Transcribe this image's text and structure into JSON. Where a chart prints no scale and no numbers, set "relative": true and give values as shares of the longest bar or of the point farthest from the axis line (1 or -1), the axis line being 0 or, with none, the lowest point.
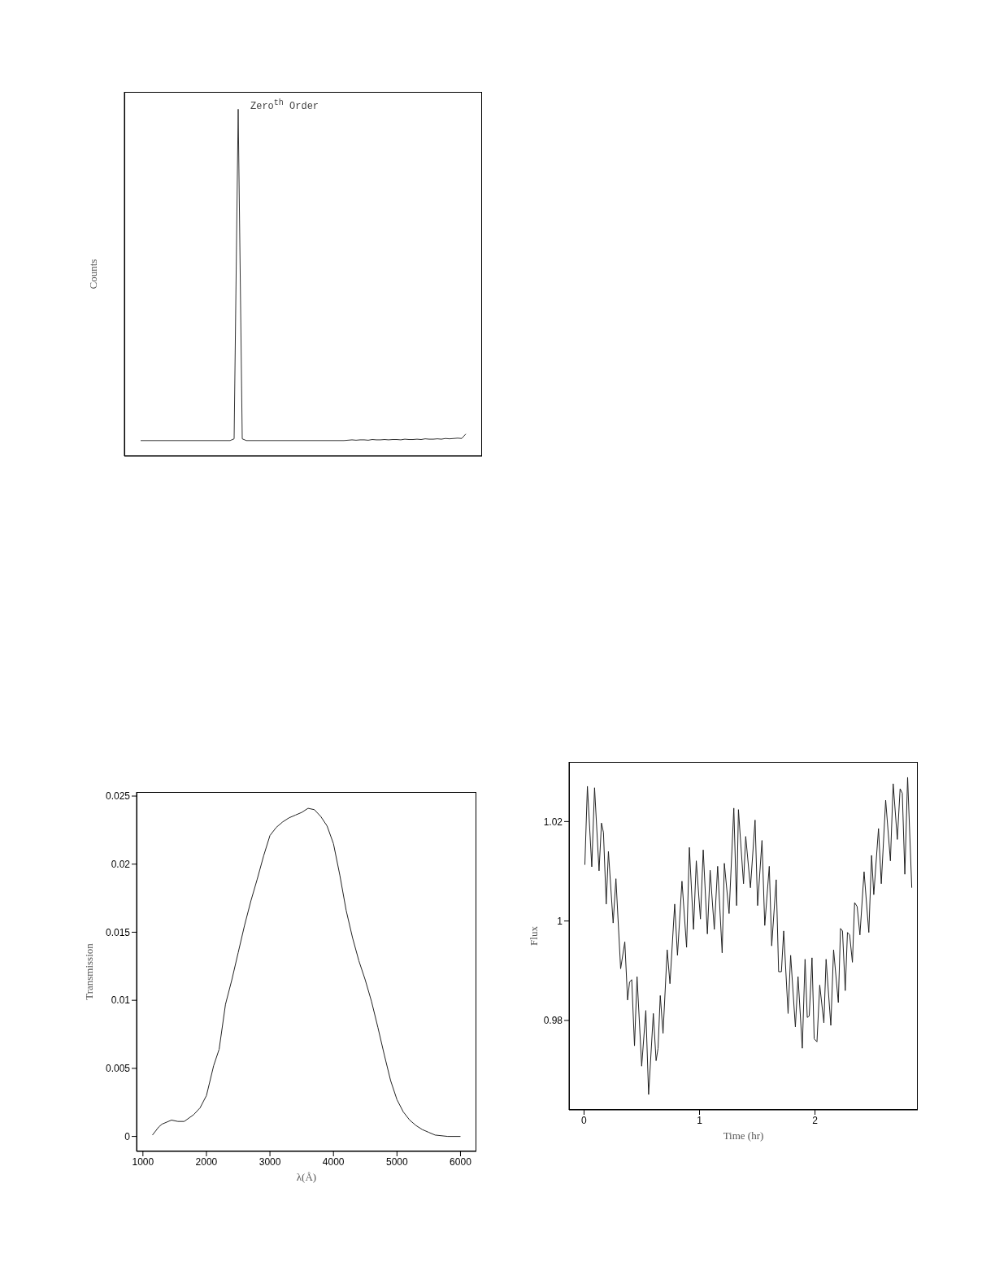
{
  "chart_data": [
    {
      "type": "line",
      "ylabel": "Counts",
      "relative": true,
      "annotations": [
        "Zero$^{th}$ Order"
      ],
      "categories": [
        null,
        null,
        null,
        null,
        null,
        null,
        null,
        null,
        null,
        null,
        null,
        null,
        null,
        null,
        null,
        null,
        null,
        null,
        null,
        null,
        null,
        null,
        null,
        null,
        null,
        null,
        null,
        null,
        null,
        null,
        null,
        null,
        null,
        null,
        null,
        null,
        null,
        null,
        null,
        null,
        null,
        null,
        null,
        null,
        null,
        null,
        null,
        null,
        null,
        null,
        null,
        null,
        null,
        null,
        null,
        null,
        null,
        null,
        null,
        null,
        null,
        null,
        null,
        null,
        null,
        null,
        null,
        null,
        null,
        null,
        null,
        null,
        null,
        null,
        null,
        null,
        null,
        null,
        null,
        null,
        null
      ],
      "series": [
        {
          "color": "#333333",
          "values": [
            0.045,
            0.045,
            0.045,
            0.045,
            0.045,
            0.045,
            0.045,
            0.045,
            0.045,
            0.045,
            0.045,
            0.045,
            0.045,
            0.045,
            0.045,
            0.045,
            0.045,
            0.045,
            0.045,
            0.045,
            0.045,
            0.045,
            0.045,
            0.05,
            1,
            0.05,
            0.045,
            0.045,
            0.045,
            0.045,
            0.045,
            0.045,
            0.045,
            0.045,
            0.045,
            0.045,
            0.045,
            0.045,
            0.045,
            0.045,
            0.045,
            0.045,
            0.045,
            0.045,
            0.045,
            0.045,
            0.045,
            0.045,
            0.045,
            0.045,
            0.045,
            0.046,
            0.047,
            0.046,
            0.047,
            0.047,
            0.046,
            0.048,
            0.047,
            0.047,
            0.048,
            0.047,
            0.048,
            0.048,
            0.047,
            0.049,
            0.048,
            0.048,
            0.049,
            0.048,
            0.05,
            0.049,
            0.049,
            0.05,
            0.049,
            0.051,
            0.05,
            0.051,
            0.052,
            0.051,
            0.064
          ]
        }
      ]
    },
    {
      "type": "line",
      "xlabel": "λ(Å)",
      "ylabel": "Transmission",
      "xlim": [
        900,
        6250
      ],
      "xticks": [
        1000,
        2000,
        3000,
        4000,
        5000,
        6000
      ],
      "ylim": [
        -0.0011,
        0.0253
      ],
      "yticks": [
        0,
        0.005,
        0.01,
        0.015,
        0.02,
        0.025
      ],
      "x": [
        1150,
        1250,
        1300,
        1450,
        1550,
        1650,
        1800,
        1900,
        2000,
        2114,
        2200,
        2300,
        2400,
        2500,
        2600,
        2700,
        2800,
        2900,
        3000,
        3100,
        3200,
        3300,
        3400,
        3500,
        3600,
        3700,
        3800,
        3900,
        4000,
        4100,
        4200,
        4300,
        4400,
        4500,
        4600,
        4700,
        4800,
        4900,
        5000,
        5100,
        5200,
        5300,
        5400,
        5500,
        5600,
        5800,
        6000
      ],
      "series": [
        {
          "color": "#222222",
          "values": [
            0.0001,
            0.0007,
            0.0009,
            0.0012,
            0.0011,
            0.0011,
            0.0016,
            0.0021,
            0.003,
            0.0052,
            0.0064,
            0.0097,
            0.0115,
            0.0135,
            0.0155,
            0.0173,
            0.0189,
            0.0206,
            0.0221,
            0.0227,
            0.0231,
            0.0234,
            0.0236,
            0.0238,
            0.0241,
            0.024,
            0.0235,
            0.0228,
            0.0215,
            0.0192,
            0.0166,
            0.0146,
            0.0129,
            0.0115,
            0.0099,
            0.008,
            0.006,
            0.0041,
            0.0027,
            0.0018,
            0.0012,
            0.0008,
            0.0005,
            0.0003,
            0.0001,
            0,
            0
          ]
        }
      ]
    },
    {
      "type": "line",
      "xlabel": "Time (hr)",
      "ylabel": "Flux",
      "xlim": [
        -0.13,
        2.89
      ],
      "xticks": [
        0,
        1,
        2
      ],
      "ylim": [
        0.962,
        1.032
      ],
      "yticks": [
        0.98,
        1,
        1.02
      ],
      "x": [
        0.007,
        0.029,
        0.067,
        0.091,
        0.13,
        0.151,
        0.168,
        0.192,
        0.211,
        0.252,
        0.276,
        0.317,
        0.353,
        0.377,
        0.394,
        0.413,
        0.437,
        0.459,
        0.499,
        0.535,
        0.559,
        0.6,
        0.624,
        0.641,
        0.66,
        0.684,
        0.72,
        0.744,
        0.785,
        0.809,
        0.848,
        0.888,
        0.912,
        0.948,
        0.972,
        1.008,
        1.032,
        1.068,
        1.092,
        1.128,
        1.157,
        1.196,
        1.215,
        1.256,
        1.297,
        1.321,
        1.337,
        1.381,
        1.4,
        1.441,
        1.481,
        1.503,
        1.541,
        1.565,
        1.604,
        1.625,
        1.664,
        1.685,
        1.709,
        1.729,
        1.767,
        1.789,
        1.83,
        1.853,
        1.89,
        1.914,
        1.933,
        1.95,
        1.974,
        1.993,
        2.017,
        2.041,
        2.077,
        2.096,
        2.137,
        2.161,
        2.202,
        2.221,
        2.238,
        2.262,
        2.281,
        2.3,
        2.324,
        2.343,
        2.365,
        2.389,
        2.425,
        2.466,
        2.49,
        2.509,
        2.55,
        2.574,
        2.612,
        2.653,
        2.677,
        2.713,
        2.737,
        2.756,
        2.778,
        2.802,
        2.838
      ],
      "series": [
        {
          "color": "#222222",
          "values": [
            1.0113,
            1.0271,
            1.0109,
            1.0268,
            1.0101,
            1.0197,
            1.0178,
            1.0034,
            1.014,
            0.9996,
            1.0085,
            0.9904,
            0.9958,
            0.9841,
            0.9877,
            0.9882,
            0.9749,
            0.9888,
            0.9708,
            0.982,
            0.9651,
            0.9814,
            0.9719,
            0.9744,
            0.985,
            0.9774,
            0.9942,
            0.9874,
            1.0034,
            0.9931,
            1.008,
            0.9947,
            1.0148,
            0.9983,
            1.0121,
            1.0004,
            1.0143,
            0.9974,
            1.0102,
            0.9983,
            1.011,
            0.9936,
            1.0116,
            1.0015,
            1.0227,
            1.0031,
            1.0224,
            1.0075,
            1.017,
            1.0067,
            1.0203,
            1.0031,
            1.0162,
            0.9991,
            1.011,
            0.995,
            1.0083,
            0.9898,
            0.9898,
            0.998,
            0.9814,
            0.9931,
            0.9787,
            0.9888,
            0.9744,
            0.9923,
            0.9806,
            0.9809,
            0.9926,
            0.9763,
            0.9757,
            0.9871,
            0.9795,
            0.9923,
            0.979,
            0.9942,
            0.9836,
            0.9985,
            0.998,
            0.986,
            0.9977,
            0.9972,
            0.9917,
            1.0037,
            1.0029,
            0.9972,
            1.0099,
            0.9977,
            1.0132,
            1.0053,
            1.0186,
            1.0075,
            1.0243,
            1.0121,
            1.0276,
            1.0164,
            1.0266,
            1.0257,
            1.0094,
            1.0289,
            1.0067
          ]
        }
      ]
    }
  ]
}
